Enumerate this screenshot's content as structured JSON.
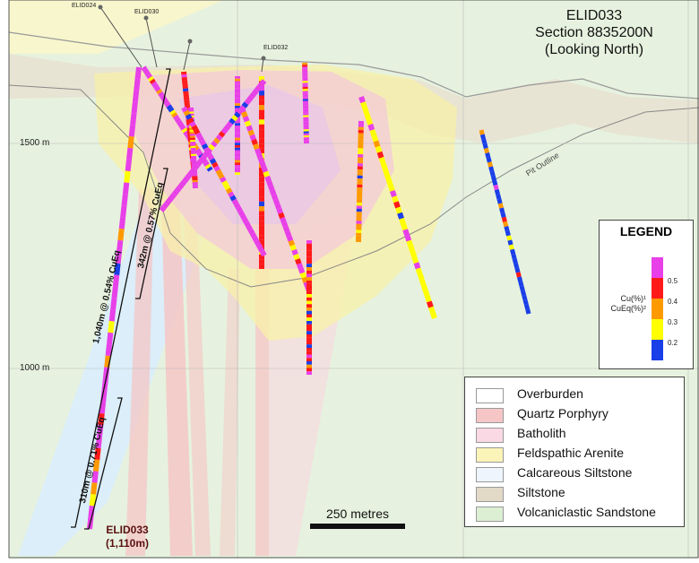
{
  "title": {
    "line1": "ELID033",
    "line2": "Section 8835200N",
    "line3": "(Looking North)"
  },
  "elevation_labels": [
    "1500 m",
    "1000 m"
  ],
  "hole_labels": [
    "ELID024",
    "ELID030",
    "ELID032"
  ],
  "annotations": {
    "intercept_1": "1,040m @ 0.54% CuEq",
    "intercept_2": "342m @ 0.57% CuEq",
    "intercept_3": "310m @ 0.71% CuEq",
    "pit_outline": "Pit Outline",
    "drill_name": "ELID033",
    "drill_length": "(1,110m)"
  },
  "scale_bar": "250 metres",
  "grade_legend": {
    "title": "LEGEND",
    "label_line1": "Cu(%)¹",
    "label_line2": "CuEq(%)²",
    "ticks": [
      "0.5",
      "0.4",
      "0.3",
      "0.2"
    ],
    "colors": [
      "#e840e8",
      "#ff1a1a",
      "#ff9900",
      "#ffff00",
      "#1a3ee8"
    ]
  },
  "lithology_legend": [
    {
      "label": "Overburden",
      "color": "#ffffff"
    },
    {
      "label": "Quartz Porphyry",
      "color": "#f6c6c6"
    },
    {
      "label": "Batholith",
      "color": "#fad9e4"
    },
    {
      "label": "Feldspathic Arenite",
      "color": "#fbf4b8"
    },
    {
      "label": "Calcareous Siltstone",
      "color": "#eef5fc"
    },
    {
      "label": "Siltstone",
      "color": "#e3d9c7"
    },
    {
      "label": "Volcaniclastic Sandstone",
      "color": "#dcefd3"
    }
  ]
}
